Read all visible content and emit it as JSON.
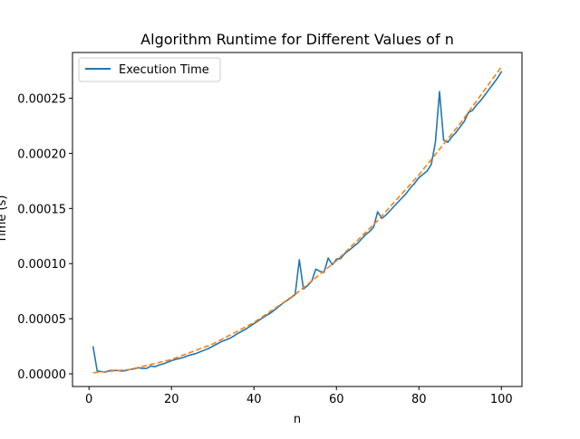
{
  "chart_data": {
    "type": "line",
    "title": "Algorithm Runtime for Different Values of n",
    "xlabel": "n",
    "ylabel": "Time (s)",
    "xlim": [
      -4,
      105
    ],
    "ylim": [
      -1.15e-05,
      0.0002915
    ],
    "x_ticks": [
      0,
      20,
      40,
      60,
      80,
      100
    ],
    "y_ticks": [
      0,
      5e-05,
      0.0001,
      0.00015,
      0.0002,
      0.00025
    ],
    "y_tick_labels": [
      "0.00000",
      "0.00005",
      "0.00010",
      "0.00015",
      "0.00020",
      "0.00025"
    ],
    "grid": false,
    "legend_position": "top-left",
    "series": [
      {
        "name": "Execution Time",
        "color": "#1f77b4",
        "style": "solid",
        "x": [
          1,
          2,
          3,
          4,
          5,
          6,
          7,
          8,
          9,
          10,
          11,
          12,
          13,
          14,
          15,
          16,
          17,
          18,
          19,
          20,
          21,
          22,
          23,
          24,
          25,
          26,
          27,
          28,
          29,
          30,
          31,
          32,
          33,
          34,
          35,
          36,
          37,
          38,
          39,
          40,
          41,
          42,
          43,
          44,
          45,
          46,
          47,
          48,
          49,
          50,
          51,
          52,
          53,
          54,
          55,
          56,
          57,
          58,
          59,
          60,
          61,
          62,
          63,
          64,
          65,
          66,
          67,
          68,
          69,
          70,
          71,
          72,
          73,
          74,
          75,
          76,
          77,
          78,
          79,
          80,
          81,
          82,
          83,
          84,
          85,
          86,
          87,
          88,
          89,
          90,
          91,
          92,
          93,
          94,
          95,
          96,
          97,
          98,
          99,
          100
        ],
        "y": [
          2.45e-05,
          2.5e-06,
          2e-06,
          1.5e-06,
          3e-06,
          3e-06,
          3e-06,
          2.5e-06,
          3e-06,
          4e-06,
          4.5e-06,
          5.5e-06,
          5e-06,
          5e-06,
          7e-06,
          6.5e-06,
          8e-06,
          9e-06,
          1.05e-05,
          1.2e-05,
          1.3e-05,
          1.4e-05,
          1.5e-05,
          1.65e-05,
          1.75e-05,
          1.85e-05,
          2e-05,
          2.15e-05,
          2.3e-05,
          2.5e-05,
          2.7e-05,
          2.9e-05,
          3.05e-05,
          3.2e-05,
          3.4e-05,
          3.65e-05,
          3.85e-05,
          4.05e-05,
          4.3e-05,
          4.55e-05,
          4.8e-05,
          5.05e-05,
          5.3e-05,
          5.5e-05,
          5.8e-05,
          6.1e-05,
          6.4e-05,
          6.65e-05,
          6.9e-05,
          7.2e-05,
          0.0001035,
          7.7e-05,
          8e-05,
          8.4e-05,
          9.5e-05,
          9.3e-05,
          9.2e-05,
          0.000105,
          9.9e-05,
          0.000104,
          0.0001045,
          0.000109,
          0.000112,
          0.000115,
          0.000118,
          0.000122,
          0.000126,
          0.000129,
          0.000133,
          0.000147,
          0.000141,
          0.000144,
          0.000148,
          0.000152,
          0.000156,
          0.00016,
          0.000164,
          0.000169,
          0.000173,
          0.000178,
          0.000181,
          0.000184,
          0.00019,
          0.00021,
          0.000256,
          0.000212,
          0.00021,
          0.000215,
          0.000219,
          0.000224,
          0.000229,
          0.000237,
          0.000239,
          0.000244,
          0.000248,
          0.000253,
          0.000258,
          0.000263,
          0.000268,
          0.000274
        ]
      },
      {
        "name": "",
        "color": "#ff7f0e",
        "style": "dashed",
        "x": [
          1,
          10,
          20,
          30,
          40,
          50,
          60,
          70,
          80,
          90,
          100
        ],
        "y": [
          1e-06,
          4e-06,
          1.3e-05,
          2.7e-05,
          4.65e-05,
          7.2e-05,
          0.0001025,
          0.000139,
          0.0001805,
          0.000227,
          0.0002785
        ]
      }
    ]
  }
}
